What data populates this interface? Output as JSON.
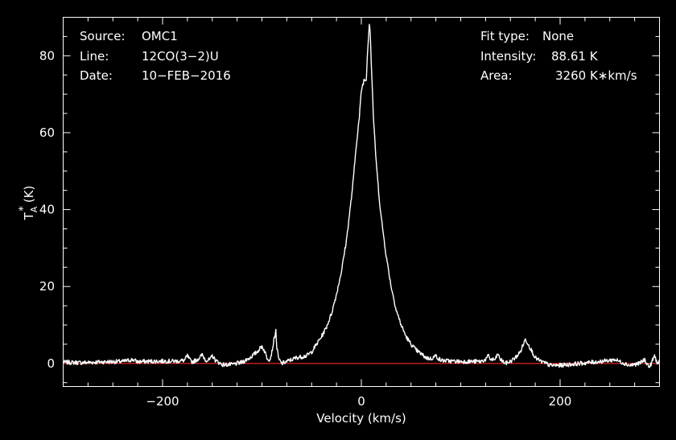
{
  "chart_data": {
    "type": "line",
    "xlabel": "Velocity (km/s)",
    "ylabel_main": "T",
    "ylabel_sup": "*",
    "ylabel_sub": "A",
    "ylabel_unit": "(K)",
    "xlim": [
      -300,
      300
    ],
    "ylim": [
      -6,
      90
    ],
    "xticks": [
      -200,
      0,
      200
    ],
    "xtick_labels": [
      "−200",
      "0",
      "200"
    ],
    "yticks": [
      0,
      20,
      40,
      60,
      80
    ],
    "ytick_labels": [
      "0",
      "20",
      "40",
      "60",
      "80"
    ],
    "baseline": 0,
    "colors": {
      "spectrum": "#ffffff",
      "baseline": "#d02020",
      "background": "#000000"
    },
    "series": [
      {
        "x": [
          -300,
          -280,
          -260,
          -240,
          -230,
          -225,
          -220,
          -200,
          -185,
          -178,
          -175,
          -172,
          -170,
          -165,
          -160,
          -157,
          -155,
          -152,
          -150,
          -147,
          -145,
          -140,
          -130,
          -120,
          -112,
          -105,
          -100,
          -97,
          -95,
          -92,
          -90,
          -88,
          -86,
          -85,
          -83,
          -80,
          -75,
          -65,
          -55,
          -50,
          -45,
          -40,
          -35,
          -30,
          -25,
          -20,
          -15,
          -10,
          -8,
          -5,
          -2,
          0,
          2,
          3,
          4,
          5,
          6,
          7,
          8,
          9,
          10,
          11,
          12,
          14,
          16,
          18,
          20,
          25,
          30,
          35,
          40,
          45,
          50,
          55,
          60,
          65,
          70,
          75,
          78,
          80,
          90,
          100,
          110,
          120,
          125,
          128,
          130,
          135,
          137,
          140,
          145,
          150,
          155,
          160,
          163,
          165,
          167,
          170,
          175,
          180,
          190,
          200,
          220,
          240,
          250,
          255,
          260,
          270,
          280,
          285,
          288,
          290,
          293,
          295,
          298,
          300
        ],
        "y": [
          0.3,
          0.2,
          0.4,
          0.5,
          1.0,
          0.4,
          0.5,
          0.6,
          0.6,
          0.8,
          2.0,
          0.7,
          0.4,
          1.0,
          2.2,
          1.0,
          0.8,
          1.0,
          2.0,
          0.9,
          0.5,
          -0.3,
          -0.3,
          0.3,
          1.5,
          3.0,
          4.5,
          3.0,
          1.5,
          1.0,
          3.0,
          6.0,
          8.5,
          4.0,
          1.0,
          0.0,
          0.5,
          1.5,
          2.0,
          3.0,
          5.0,
          7.0,
          9.5,
          13.0,
          18.0,
          24.0,
          32.0,
          43.0,
          48.0,
          57.0,
          64.0,
          71.0,
          73.0,
          74.0,
          73.5,
          74.0,
          80.0,
          84.0,
          88.6,
          86.0,
          78.0,
          72.0,
          65.0,
          56.0,
          49.0,
          43.0,
          38.0,
          28.0,
          20.0,
          14.0,
          10.0,
          7.0,
          5.0,
          3.5,
          2.5,
          1.5,
          1.2,
          2.0,
          1.2,
          0.8,
          0.6,
          0.5,
          0.5,
          0.5,
          1.0,
          2.0,
          1.0,
          1.0,
          2.5,
          1.0,
          0.0,
          0.5,
          1.5,
          3.0,
          5.0,
          6.2,
          5.5,
          4.0,
          1.5,
          0.6,
          -0.5,
          -0.5,
          0.0,
          0.5,
          0.8,
          1.0,
          0.5,
          -0.5,
          0.0,
          1.0,
          -0.3,
          -1.0,
          0.8,
          2.0,
          0.0,
          0.4
        ]
      }
    ]
  },
  "info": {
    "source_label": "Source:",
    "source_value": "OMC1",
    "line_label": "Line:",
    "line_value": "12CO(3−2)U",
    "date_label": "Date:",
    "date_value": "10−FEB−2016",
    "fit_label": "Fit type:",
    "fit_value": "None",
    "intensity_label": "Intensity:",
    "intensity_value": "88.61 K",
    "area_label": "Area:",
    "area_value": "3260 K∗km/s"
  }
}
